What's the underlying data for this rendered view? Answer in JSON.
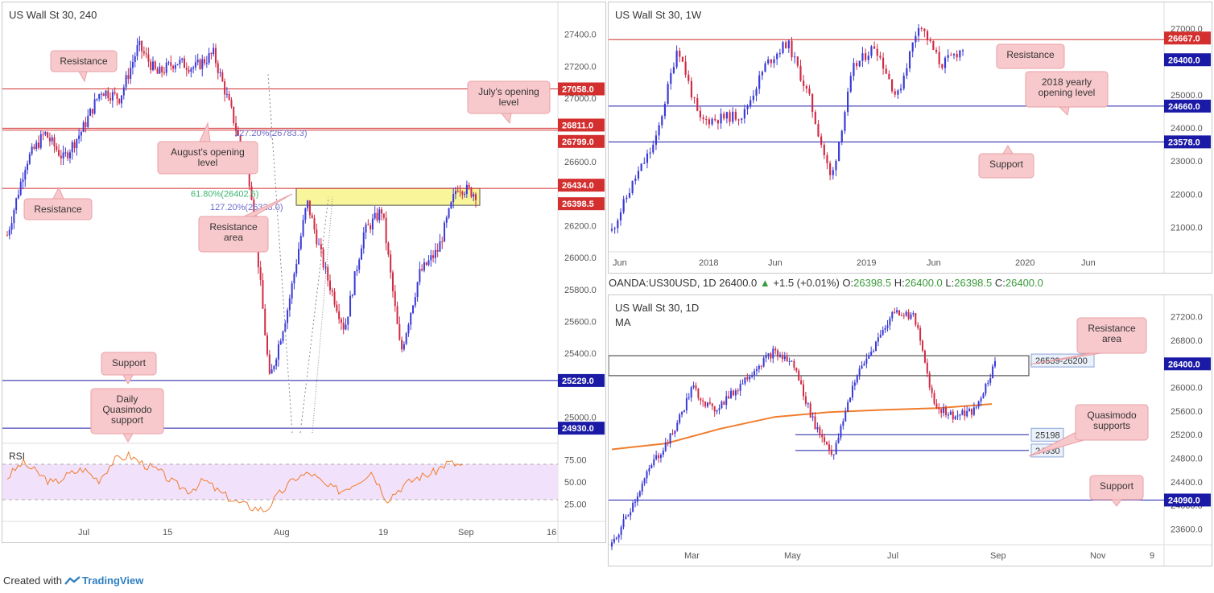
{
  "panels": {
    "p240": {
      "title": "US Wall St 30, 240",
      "rsi_label": "RSI",
      "x_ticks": [
        "Jul",
        "15",
        "Aug",
        "19",
        "Sep",
        "16"
      ],
      "y_ticks": [
        "27400.0",
        "27200.0",
        "27000.0",
        "26600.0",
        "26200.0",
        "26000.0",
        "25800.0",
        "25600.0",
        "25400.0",
        "25000.0"
      ],
      "rsi_ticks": [
        "75.00",
        "50.00",
        "25.00"
      ],
      "price_tags": [
        "27058.0",
        "26811.0",
        "26799.0",
        "26434.0",
        "26398.5",
        "25229.0",
        "24930.0"
      ],
      "fib_labels": [
        "127.20%(26783.3)",
        "61.80%(26402.5)",
        "127.20%(26328.0)"
      ],
      "callouts": [
        "Resistance",
        "July's opening level",
        "August's opening level",
        "Resistance",
        "Resistance area",
        "Support",
        "Daily Quasimodo support"
      ]
    },
    "p1w": {
      "title": "US Wall St 30, 1W",
      "x_ticks": [
        "Jun",
        "2018",
        "Jun",
        "2019",
        "Jun",
        "2020",
        "Jun"
      ],
      "y_ticks": [
        "27000.0",
        "26000.0",
        "25000.0",
        "24000.0",
        "23000.0",
        "22000.0",
        "21000.0"
      ],
      "price_tags": [
        "26667.0",
        "26400.0",
        "24660.0",
        "23578.0"
      ],
      "callouts": [
        "Resistance",
        "2018 yearly opening level",
        "Support"
      ]
    },
    "p1d": {
      "header": {
        "symbol": "OANDA:US30USD, 1D",
        "last": "26400.0",
        "change": "+1.5 (+0.01%)",
        "o_label": "O:",
        "o": "26398.5",
        "h_label": "H:",
        "h": "26400.0",
        "l_label": "L:",
        "l": "26398.5",
        "c_label": "C:",
        "c": "26400.0"
      },
      "title": "US Wall St 30, 1D",
      "ma_label": "MA",
      "x_ticks": [
        "Mar",
        "May",
        "Jul",
        "Sep",
        "Nov",
        "9"
      ],
      "y_ticks": [
        "27200.0",
        "26800.0",
        "26000.0",
        "25600.0",
        "25200.0",
        "24800.0",
        "24400.0",
        "24000.0",
        "23600.0"
      ],
      "price_tags": [
        "26400.0",
        "24090.0"
      ],
      "zone_label": "26539-26200",
      "level_labels": [
        "25198",
        "24930"
      ],
      "callouts": [
        "Resistance area",
        "Quasimodo supports",
        "Support"
      ]
    }
  },
  "footer": {
    "created_with": "Created with",
    "brand": "TradingView"
  },
  "colors": {
    "up": "#3a3ad6",
    "down": "#d02b45",
    "resistance": "#d32f2f",
    "support": "#1a1aa6",
    "zone": "#f9f59b",
    "rsi_line": "#f07d2d",
    "rsi_band": "#f2e1fb",
    "ma": "#f07d2d",
    "fib_green": "#3bb56e",
    "fib_blue": "#6d6dcc",
    "callout_bg": "#f8c9cc",
    "callout_border": "#e8a1a6"
  },
  "chart_data": [
    {
      "type": "candlestick",
      "title": "US Wall St 30, 240",
      "ylim": [
        24850,
        27550
      ],
      "levels": [
        {
          "name": "Resistance",
          "value": 27058.0
        },
        {
          "name": "July's opening level",
          "value": 26811.0
        },
        {
          "name": "August's opening level",
          "value": 26799.0
        },
        {
          "name": "Resistance",
          "value": 26434.0
        },
        {
          "name": "Support",
          "value": 25229.0
        },
        {
          "name": "Daily Quasimodo support",
          "value": 24930.0
        }
      ],
      "resistance_area": [
        26328.0,
        26434.0
      ],
      "fib": [
        {
          "label": "127.20%",
          "value": 26783.3
        },
        {
          "label": "61.80%",
          "value": 26402.5
        },
        {
          "label": "127.20%",
          "value": 26328.0
        }
      ],
      "close_path": [
        {
          "x": "Jun 25",
          "y": 26140
        },
        {
          "x": "Jun 28",
          "y": 26600
        },
        {
          "x": "Jul 2",
          "y": 26780
        },
        {
          "x": "Jul 5",
          "y": 26620
        },
        {
          "x": "Jul 9",
          "y": 26800
        },
        {
          "x": "Jul 11",
          "y": 27050
        },
        {
          "x": "Jul 12",
          "y": 27000
        },
        {
          "x": "Jul 15",
          "y": 27330
        },
        {
          "x": "Jul 18",
          "y": 27150
        },
        {
          "x": "Jul 22",
          "y": 27230
        },
        {
          "x": "Jul 26",
          "y": 27190
        },
        {
          "x": "Jul 30",
          "y": 27280
        },
        {
          "x": "Jul 31",
          "y": 26900
        },
        {
          "x": "Aug 2",
          "y": 26450
        },
        {
          "x": "Aug 5",
          "y": 25230
        },
        {
          "x": "Aug 6",
          "y": 25700
        },
        {
          "x": "Aug 8",
          "y": 26350
        },
        {
          "x": "Aug 12",
          "y": 25900
        },
        {
          "x": "Aug 15",
          "y": 25550
        },
        {
          "x": "Aug 19",
          "y": 26150
        },
        {
          "x": "Aug 22",
          "y": 26300
        },
        {
          "x": "Aug 23",
          "y": 25400
        },
        {
          "x": "Aug 26",
          "y": 25900
        },
        {
          "x": "Aug 28",
          "y": 26050
        },
        {
          "x": "Aug 30",
          "y": 26450
        },
        {
          "x": "Sep 2",
          "y": 26400
        }
      ],
      "rsi": {
        "levels": [
          70,
          30
        ],
        "ylim": [
          10,
          90
        ],
        "values": [
          55,
          72,
          60,
          48,
          58,
          65,
          52,
          74,
          80,
          70,
          62,
          48,
          40,
          52,
          38,
          28,
          22,
          18,
          38,
          55,
          60,
          45,
          40,
          50,
          62,
          30,
          45,
          55,
          60,
          72,
          68
        ]
      }
    },
    {
      "type": "candlestick",
      "title": "US Wall St 30, 1W",
      "ylim": [
        20500,
        27500
      ],
      "levels": [
        {
          "name": "Resistance",
          "value": 26667.0
        },
        {
          "name": "2018 yearly opening level",
          "value": 24660.0
        },
        {
          "name": "Support",
          "value": 23578.0
        }
      ],
      "last": 26400.0,
      "close_path": [
        {
          "x": "May 2017",
          "y": 20900
        },
        {
          "x": "Sep 2017",
          "y": 22400
        },
        {
          "x": "Nov 2017",
          "y": 23600
        },
        {
          "x": "Jan 2018",
          "y": 26500
        },
        {
          "x": "Feb 2018",
          "y": 24200
        },
        {
          "x": "Apr 2018",
          "y": 24300
        },
        {
          "x": "Jun 2018",
          "y": 24400
        },
        {
          "x": "Aug 2018",
          "y": 25900
        },
        {
          "x": "Oct 2018",
          "y": 26600
        },
        {
          "x": "Nov 2018",
          "y": 24900
        },
        {
          "x": "Dec 2018",
          "y": 22400
        },
        {
          "x": "Feb 2019",
          "y": 25800
        },
        {
          "x": "Apr 2019",
          "y": 26500
        },
        {
          "x": "May 2019",
          "y": 24900
        },
        {
          "x": "Jul 2019",
          "y": 27200
        },
        {
          "x": "Aug 2019",
          "y": 25900
        },
        {
          "x": "Sep 2019",
          "y": 26400
        }
      ]
    },
    {
      "type": "candlestick",
      "title": "US Wall St 30, 1D",
      "ylim": [
        23400,
        27400
      ],
      "levels": [
        {
          "name": "Quasimodo support",
          "value": 25198
        },
        {
          "name": "Quasimodo support",
          "value": 24930
        },
        {
          "name": "Support",
          "value": 24090.0
        }
      ],
      "resistance_area": [
        26200,
        26539
      ],
      "last": 26400.0,
      "close_path": [
        {
          "x": "Jan 2",
          "y": 23300
        },
        {
          "x": "Jan 10",
          "y": 24000
        },
        {
          "x": "Jan 25",
          "y": 24700
        },
        {
          "x": "Feb 8",
          "y": 25200
        },
        {
          "x": "Feb 22",
          "y": 26000
        },
        {
          "x": "Mar 8",
          "y": 25600
        },
        {
          "x": "Mar 22",
          "y": 25900
        },
        {
          "x": "Apr 5",
          "y": 26300
        },
        {
          "x": "Apr 23",
          "y": 26600
        },
        {
          "x": "May 3",
          "y": 26400
        },
        {
          "x": "May 13",
          "y": 25400
        },
        {
          "x": "May 31",
          "y": 24850
        },
        {
          "x": "Jun 14",
          "y": 26100
        },
        {
          "x": "Jun 28",
          "y": 26700
        },
        {
          "x": "Jul 12",
          "y": 27300
        },
        {
          "x": "Jul 26",
          "y": 27200
        },
        {
          "x": "Aug 5",
          "y": 25700
        },
        {
          "x": "Aug 14",
          "y": 25500
        },
        {
          "x": "Aug 23",
          "y": 25600
        },
        {
          "x": "Aug 30",
          "y": 26400
        }
      ],
      "ma_path": [
        {
          "x": "Jan 2",
          "y": 24950
        },
        {
          "x": "Feb 22",
          "y": 25050
        },
        {
          "x": "Apr 5",
          "y": 25300
        },
        {
          "x": "May 13",
          "y": 25500
        },
        {
          "x": "Jun 14",
          "y": 25580
        },
        {
          "x": "Jul 12",
          "y": 25620
        },
        {
          "x": "Aug 14",
          "y": 25650
        },
        {
          "x": "Aug 30",
          "y": 25720
        }
      ]
    }
  ]
}
